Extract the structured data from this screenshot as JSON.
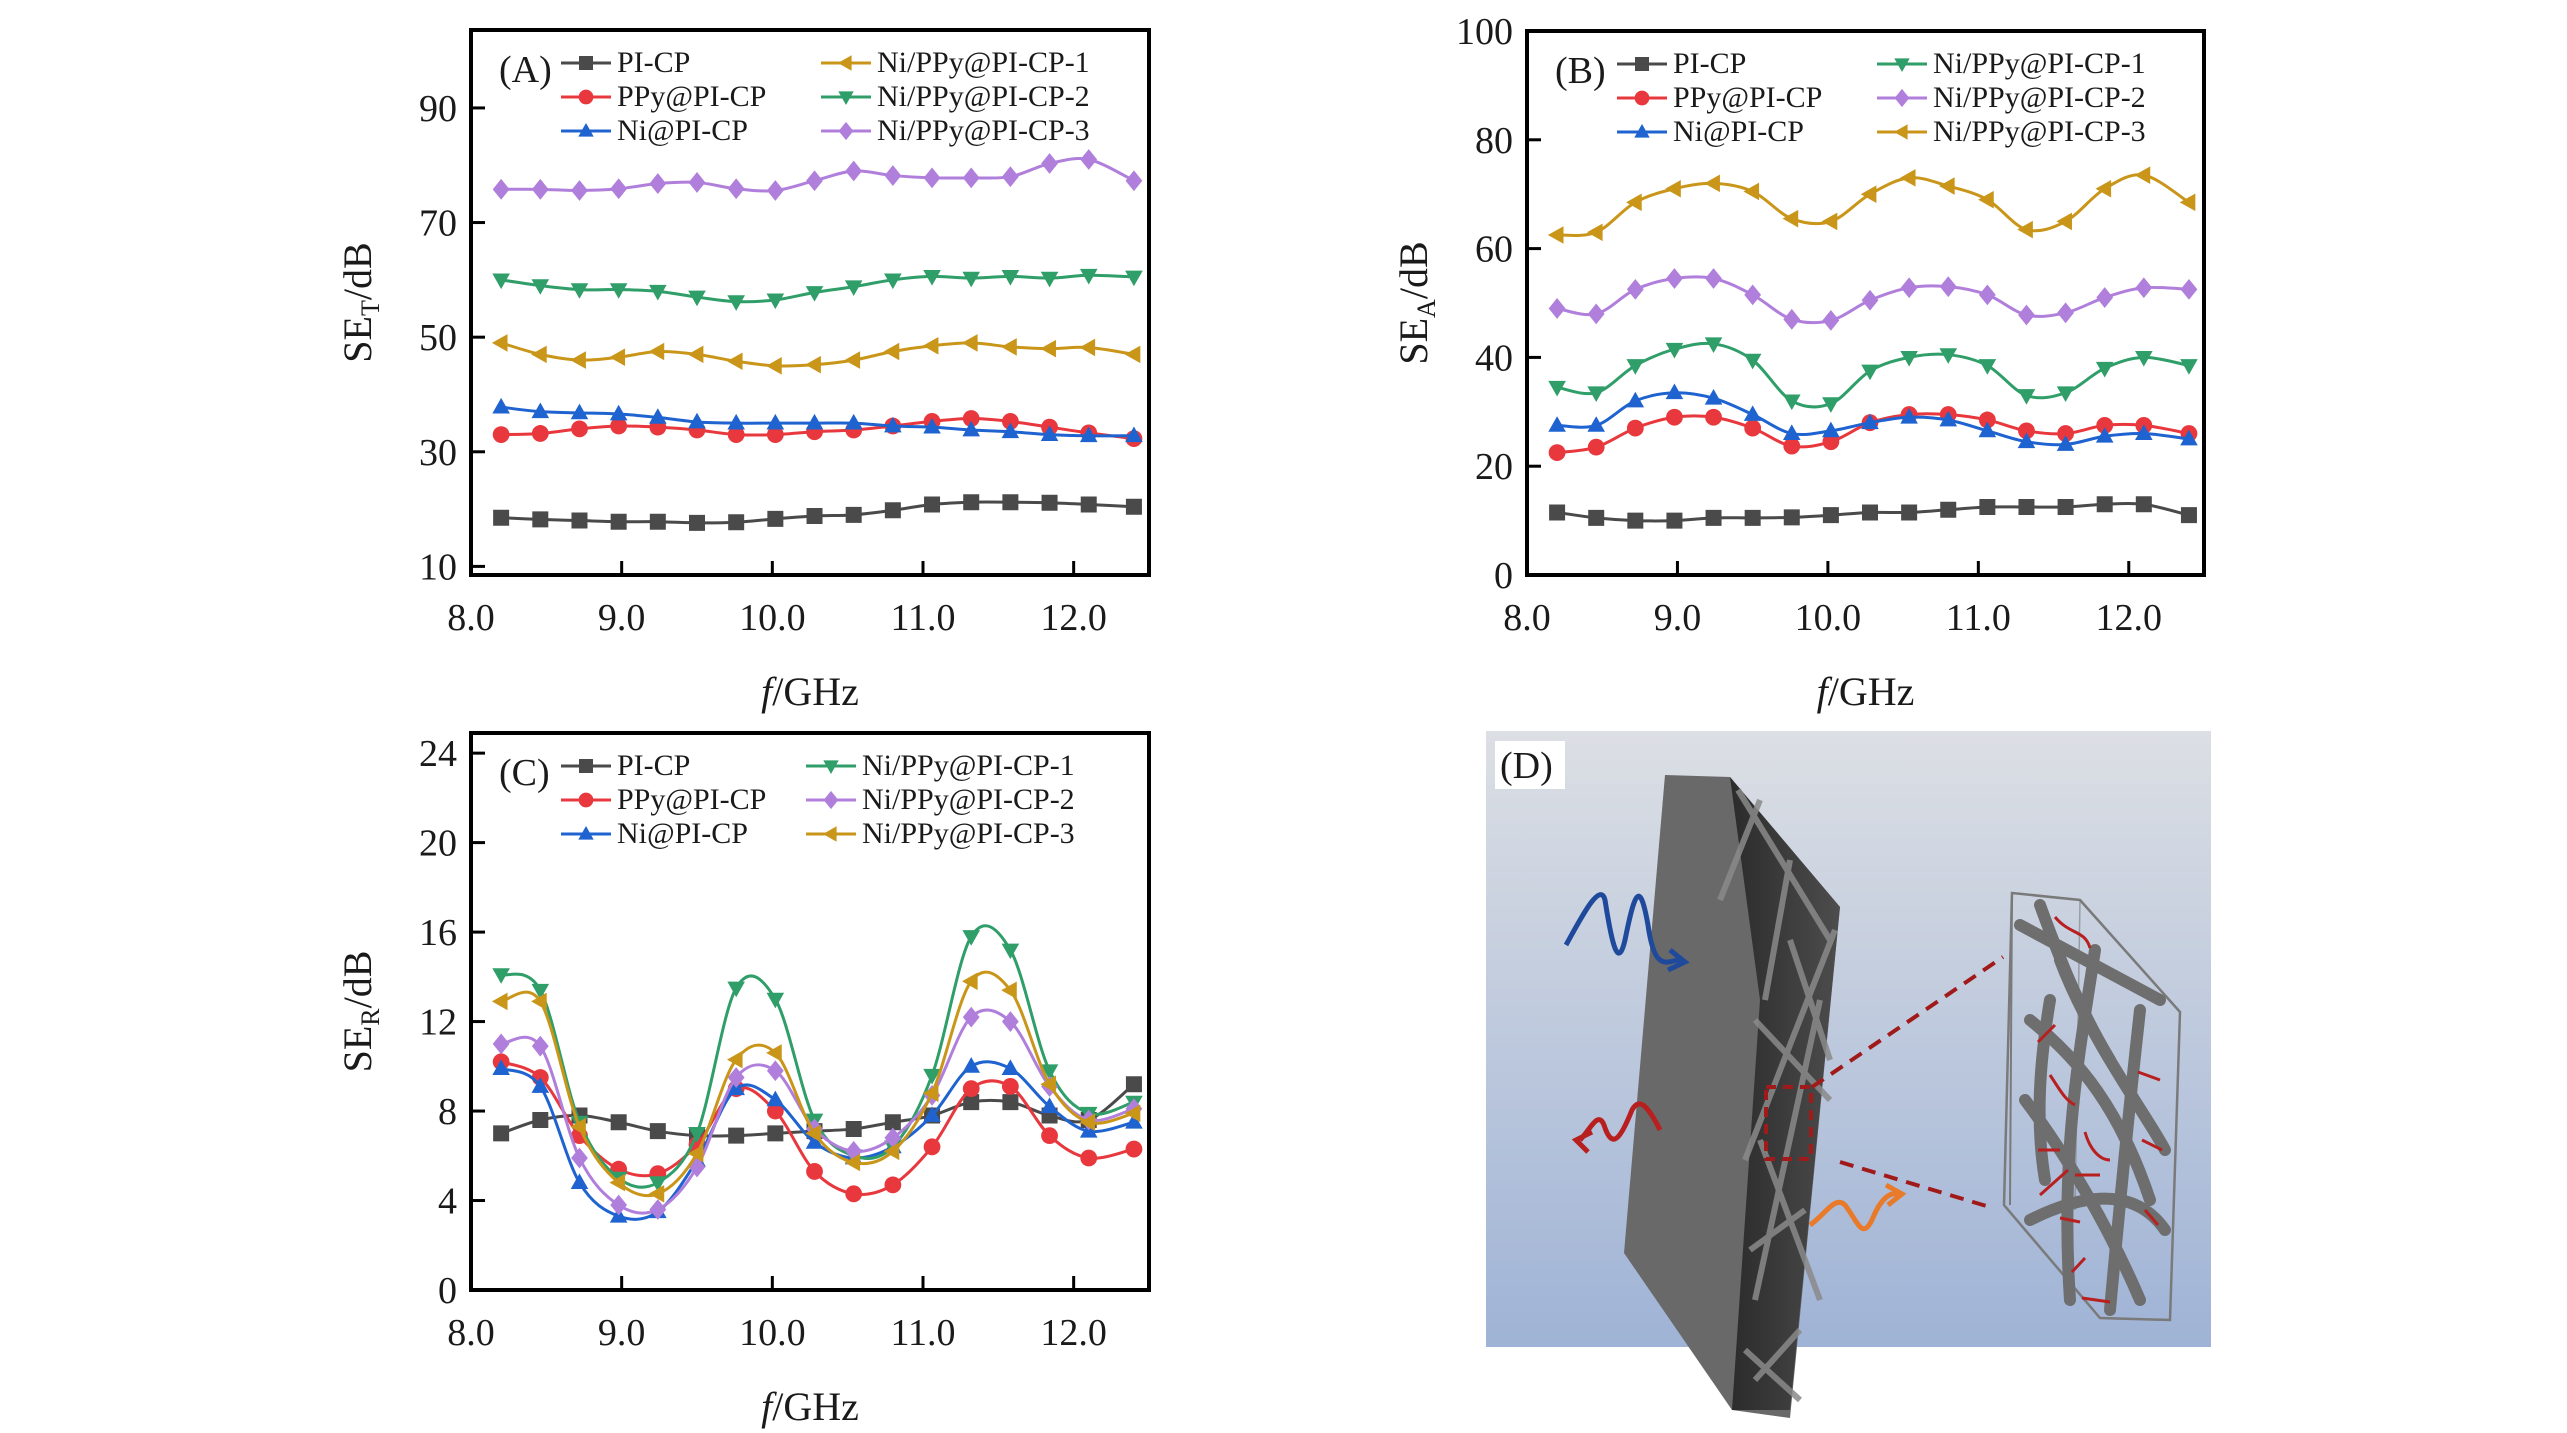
{
  "figure": {
    "panels": [
      "(A)",
      "(B)",
      "(C)",
      "(D)"
    ]
  },
  "series_styles": [
    {
      "name": "PI-CP",
      "color": "#4a4a4a",
      "marker": "square"
    },
    {
      "name": "PPy@PI-CP",
      "color": "#e8383d",
      "marker": "circle"
    },
    {
      "name": "Ni@PI-CP",
      "color": "#1f63d0",
      "marker": "triangle-up"
    }
  ],
  "chart_data": [
    {
      "id": "A",
      "type": "line",
      "panel_label": "(A)",
      "xlabel_italic": "f",
      "xlabel_rest": "/GHz",
      "ylabel_main": "SE",
      "ylabel_sub": "T",
      "ylabel_rest": "/dB",
      "xlim": [
        8.0,
        12.5
      ],
      "ylim": [
        8.5,
        103.6
      ],
      "xticks": [
        8.0,
        9.0,
        10.0,
        11.0,
        12.0
      ],
      "xtick_labels": [
        "8.0",
        "9.0",
        "10.0",
        "11.0",
        "12.0"
      ],
      "yticks": [
        10,
        30,
        50,
        70,
        90
      ],
      "ytick_labels": [
        "10",
        "30",
        "50",
        "70",
        "90"
      ],
      "legend_position": "top",
      "x": [
        8.2,
        8.46,
        8.72,
        8.98,
        9.24,
        9.5,
        9.76,
        10.02,
        10.28,
        10.54,
        10.8,
        11.06,
        11.32,
        11.58,
        11.84,
        12.1,
        12.4
      ],
      "series": [
        {
          "name": "PI-CP",
          "color": "#4a4a4a",
          "marker": "square",
          "values": [
            18.5,
            18.2,
            18.0,
            17.8,
            17.8,
            17.6,
            17.7,
            18.3,
            18.8,
            19.0,
            19.8,
            20.8,
            21.2,
            21.2,
            21.1,
            20.8,
            20.4
          ]
        },
        {
          "name": "PPy@PI-CP",
          "color": "#e8383d",
          "marker": "circle",
          "values": [
            33.0,
            33.2,
            34.0,
            34.5,
            34.3,
            33.8,
            33.0,
            33.0,
            33.5,
            33.8,
            34.5,
            35.3,
            35.8,
            35.3,
            34.3,
            33.3,
            32.3
          ]
        },
        {
          "name": "Ni@PI-CP",
          "color": "#1f63d0",
          "marker": "triangle-up",
          "values": [
            37.8,
            37.0,
            36.8,
            36.6,
            36.0,
            35.2,
            35.0,
            35.0,
            35.0,
            35.0,
            34.5,
            34.3,
            33.8,
            33.5,
            33.0,
            32.8,
            32.8
          ]
        },
        {
          "name": "Ni/PPy@PI-CP-1",
          "color": "#c9961a",
          "marker": "triangle-left",
          "values": [
            49.0,
            47.0,
            46.0,
            46.5,
            47.5,
            47.0,
            45.8,
            45.0,
            45.2,
            46.0,
            47.5,
            48.5,
            49.0,
            48.3,
            48.0,
            48.2,
            47.0
          ]
        },
        {
          "name": "Ni/PPy@PI-CP-2",
          "color": "#2f9e68",
          "marker": "triangle-down",
          "values": [
            60.0,
            59.0,
            58.3,
            58.3,
            58.0,
            57.0,
            56.2,
            56.5,
            57.8,
            58.8,
            60.0,
            60.6,
            60.3,
            60.6,
            60.3,
            60.8,
            60.5
          ]
        },
        {
          "name": "Ni/PPy@PI-CP-3",
          "color": "#b07fdc",
          "marker": "diamond",
          "values": [
            75.8,
            75.8,
            75.6,
            75.9,
            76.8,
            77.0,
            75.9,
            75.6,
            77.3,
            79.0,
            78.2,
            77.8,
            77.8,
            78.0,
            80.3,
            81.0,
            77.3
          ]
        }
      ]
    },
    {
      "id": "B",
      "type": "line",
      "panel_label": "(B)",
      "xlabel_italic": "f",
      "xlabel_rest": "/GHz",
      "ylabel_main": "SE",
      "ylabel_sub": "A",
      "ylabel_rest": "/dB",
      "xlim": [
        8.0,
        12.5
      ],
      "ylim": [
        0,
        100
      ],
      "xticks": [
        8.0,
        9.0,
        10.0,
        11.0,
        12.0
      ],
      "xtick_labels": [
        "8.0",
        "9.0",
        "10.0",
        "11.0",
        "12.0"
      ],
      "yticks": [
        0,
        20,
        40,
        60,
        80,
        100
      ],
      "ytick_labels": [
        "0",
        "20",
        "40",
        "60",
        "80",
        "100"
      ],
      "legend_position": "top",
      "x": [
        8.2,
        8.46,
        8.72,
        8.98,
        9.24,
        9.5,
        9.76,
        10.02,
        10.28,
        10.54,
        10.8,
        11.06,
        11.32,
        11.58,
        11.84,
        12.1,
        12.4
      ],
      "series": [
        {
          "name": "PI-CP",
          "color": "#4a4a4a",
          "marker": "square",
          "values": [
            11.5,
            10.5,
            10.0,
            10.0,
            10.5,
            10.5,
            10.6,
            11.0,
            11.5,
            11.5,
            12.0,
            12.5,
            12.5,
            12.5,
            13.0,
            13.0,
            11.0
          ]
        },
        {
          "name": "PPy@PI-CP",
          "color": "#e8383d",
          "marker": "circle",
          "values": [
            22.5,
            23.5,
            27.0,
            29.0,
            29.0,
            27.0,
            23.7,
            24.5,
            28.0,
            29.5,
            29.5,
            28.5,
            26.5,
            26.0,
            27.5,
            27.5,
            26.0
          ]
        },
        {
          "name": "Ni@PI-CP",
          "color": "#1f63d0",
          "marker": "triangle-up",
          "values": [
            27.5,
            27.5,
            32.0,
            33.5,
            32.5,
            29.5,
            26.0,
            26.5,
            28.0,
            29.0,
            28.5,
            26.5,
            24.5,
            24.0,
            25.5,
            26.0,
            25.0
          ]
        },
        {
          "name": "Ni/PPy@PI-CP-1",
          "color": "#2f9e68",
          "marker": "triangle-down",
          "values": [
            34.5,
            33.5,
            38.5,
            41.5,
            42.5,
            39.5,
            32.0,
            31.5,
            37.5,
            40.0,
            40.5,
            38.5,
            33.0,
            33.5,
            38.0,
            40.0,
            38.5
          ]
        },
        {
          "name": "Ni/PPy@PI-CP-2",
          "color": "#b07fdc",
          "marker": "diamond",
          "values": [
            49.0,
            48.0,
            52.5,
            54.5,
            54.5,
            51.5,
            47.0,
            46.8,
            50.5,
            52.8,
            53.0,
            51.5,
            47.8,
            48.2,
            51.0,
            52.8,
            52.5
          ]
        },
        {
          "name": "Ni/PPy@PI-CP-3",
          "color": "#c9961a",
          "marker": "triangle-left",
          "values": [
            62.5,
            63.0,
            68.5,
            71.0,
            72.0,
            70.5,
            65.5,
            65.0,
            70.0,
            73.0,
            71.5,
            69.0,
            63.5,
            65.0,
            71.0,
            73.5,
            68.5
          ]
        }
      ]
    },
    {
      "id": "C",
      "type": "line",
      "panel_label": "(C)",
      "xlabel_italic": "f",
      "xlabel_rest": "/GHz",
      "ylabel_main": "SE",
      "ylabel_sub": "R",
      "ylabel_rest": "/dB",
      "xlim": [
        8.0,
        12.5
      ],
      "ylim": [
        0,
        24.9
      ],
      "xticks": [
        8.0,
        9.0,
        10.0,
        11.0,
        12.0
      ],
      "xtick_labels": [
        "8.0",
        "9.0",
        "10.0",
        "11.0",
        "12.0"
      ],
      "yticks": [
        0,
        4,
        8,
        12,
        16,
        20,
        24
      ],
      "ytick_labels": [
        "0",
        "4",
        "8",
        "12",
        "16",
        "20",
        "24"
      ],
      "legend_position": "top",
      "x": [
        8.2,
        8.46,
        8.72,
        8.98,
        9.24,
        9.5,
        9.76,
        10.02,
        10.28,
        10.54,
        10.8,
        11.06,
        11.32,
        11.58,
        11.84,
        12.1,
        12.4
      ],
      "series": [
        {
          "name": "PI-CP",
          "color": "#4a4a4a",
          "marker": "square",
          "values": [
            7.0,
            7.6,
            7.8,
            7.5,
            7.1,
            6.9,
            6.9,
            7.0,
            7.1,
            7.2,
            7.5,
            7.8,
            8.4,
            8.4,
            7.8,
            7.6,
            9.2
          ]
        },
        {
          "name": "PPy@PI-CP",
          "color": "#e8383d",
          "marker": "circle",
          "values": [
            10.2,
            9.5,
            6.9,
            5.4,
            5.2,
            6.5,
            9.0,
            8.0,
            5.3,
            4.3,
            4.7,
            6.4,
            9.0,
            9.1,
            6.9,
            5.9,
            6.3
          ]
        },
        {
          "name": "Ni@PI-CP",
          "color": "#1f63d0",
          "marker": "triangle-up",
          "values": [
            9.9,
            9.1,
            4.8,
            3.3,
            3.5,
            5.8,
            9.0,
            8.5,
            6.6,
            5.9,
            6.4,
            7.8,
            10.0,
            9.9,
            8.2,
            7.1,
            7.5
          ]
        },
        {
          "name": "Ni/PPy@PI-CP-1",
          "color": "#2f9e68",
          "marker": "triangle-down",
          "values": [
            14.1,
            13.4,
            7.5,
            5.0,
            4.8,
            7.0,
            13.5,
            13.0,
            7.6,
            6.0,
            6.4,
            9.6,
            15.8,
            15.2,
            9.8,
            7.9,
            8.4
          ]
        },
        {
          "name": "Ni/PPy@PI-CP-2",
          "color": "#b07fdc",
          "marker": "diamond",
          "values": [
            11.0,
            10.9,
            5.9,
            3.8,
            3.6,
            5.5,
            9.5,
            9.8,
            7.2,
            6.2,
            6.8,
            8.7,
            12.2,
            12.0,
            9.1,
            7.6,
            8.1
          ]
        },
        {
          "name": "Ni/PPy@PI-CP-3",
          "color": "#c9961a",
          "marker": "triangle-left",
          "values": [
            12.9,
            12.9,
            7.3,
            4.8,
            4.3,
            6.1,
            10.3,
            10.6,
            7.0,
            5.7,
            6.2,
            8.8,
            13.8,
            13.4,
            9.2,
            7.5,
            7.9
          ]
        }
      ]
    }
  ],
  "panel_d": {
    "label": "(D)",
    "description": "3D schematic of porous composite film with incident, reflected and transmitted microwaves and a zoomed view of fibre network",
    "colors": {
      "incident_wave": "#1f4a9c",
      "reflected_wave": "#b81f1f",
      "transmitted_wave": "#e87a2a",
      "zoom_lines": "#a11a1a",
      "background_top": "#dcdfe4",
      "background_bottom": "#9fb3d6",
      "slab": "#6b6b6b"
    }
  }
}
